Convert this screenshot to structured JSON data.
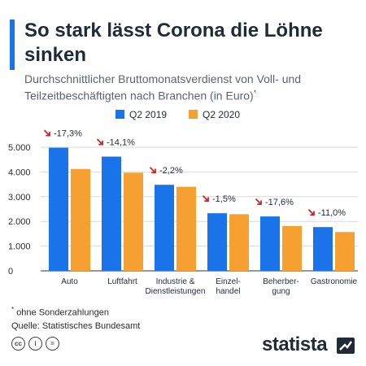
{
  "header": {
    "title": "So stark lässt Corona die Löhne sinken",
    "subtitle": "Durchschnittlicher Bruttomonatsverdienst von Voll- und Teilzeitbeschäftigten nach Branchen (in Euro)",
    "subtitle_mark": "*"
  },
  "footer": {
    "footnote_mark": "*",
    "footnote": "ohne Sonderzahlungen",
    "source": "Quelle: Statistisches Bundesamt",
    "brand": "statista",
    "license_icons": [
      "cc",
      "i",
      "="
    ]
  },
  "colors": {
    "accent": "#1a73e8",
    "series_2019": "#1a73e8",
    "series_2020": "#f5a031",
    "arrow": "#c62828",
    "brand_mark": "#1f2b38"
  },
  "chart_data": {
    "type": "bar",
    "categories": [
      [
        "Auto"
      ],
      [
        "Luftfahrt"
      ],
      [
        "Industrie &",
        "Dienstleistungen"
      ],
      [
        "Einzel-",
        "handel"
      ],
      [
        "Beherber-",
        "gung"
      ],
      [
        "Gastronomie"
      ]
    ],
    "series": [
      {
        "name": "Q2 2019",
        "values": [
          4980,
          4620,
          3480,
          2330,
          2200,
          1770
        ]
      },
      {
        "name": "Q2 2020",
        "values": [
          4120,
          3970,
          3400,
          2290,
          1810,
          1570
        ]
      }
    ],
    "changes": [
      "-17,3%",
      "-14,1%",
      "-2,2%",
      "-1,5%",
      "-17,6%",
      "-11,0%"
    ],
    "ylim": [
      0,
      5000
    ],
    "yticks": [
      0,
      1000,
      2000,
      3000,
      4000,
      5000
    ],
    "ytick_labels": [
      "0",
      "1.000",
      "2.000",
      "3.000",
      "4.000",
      "5.000"
    ],
    "grid": true,
    "legend": "top-center"
  }
}
